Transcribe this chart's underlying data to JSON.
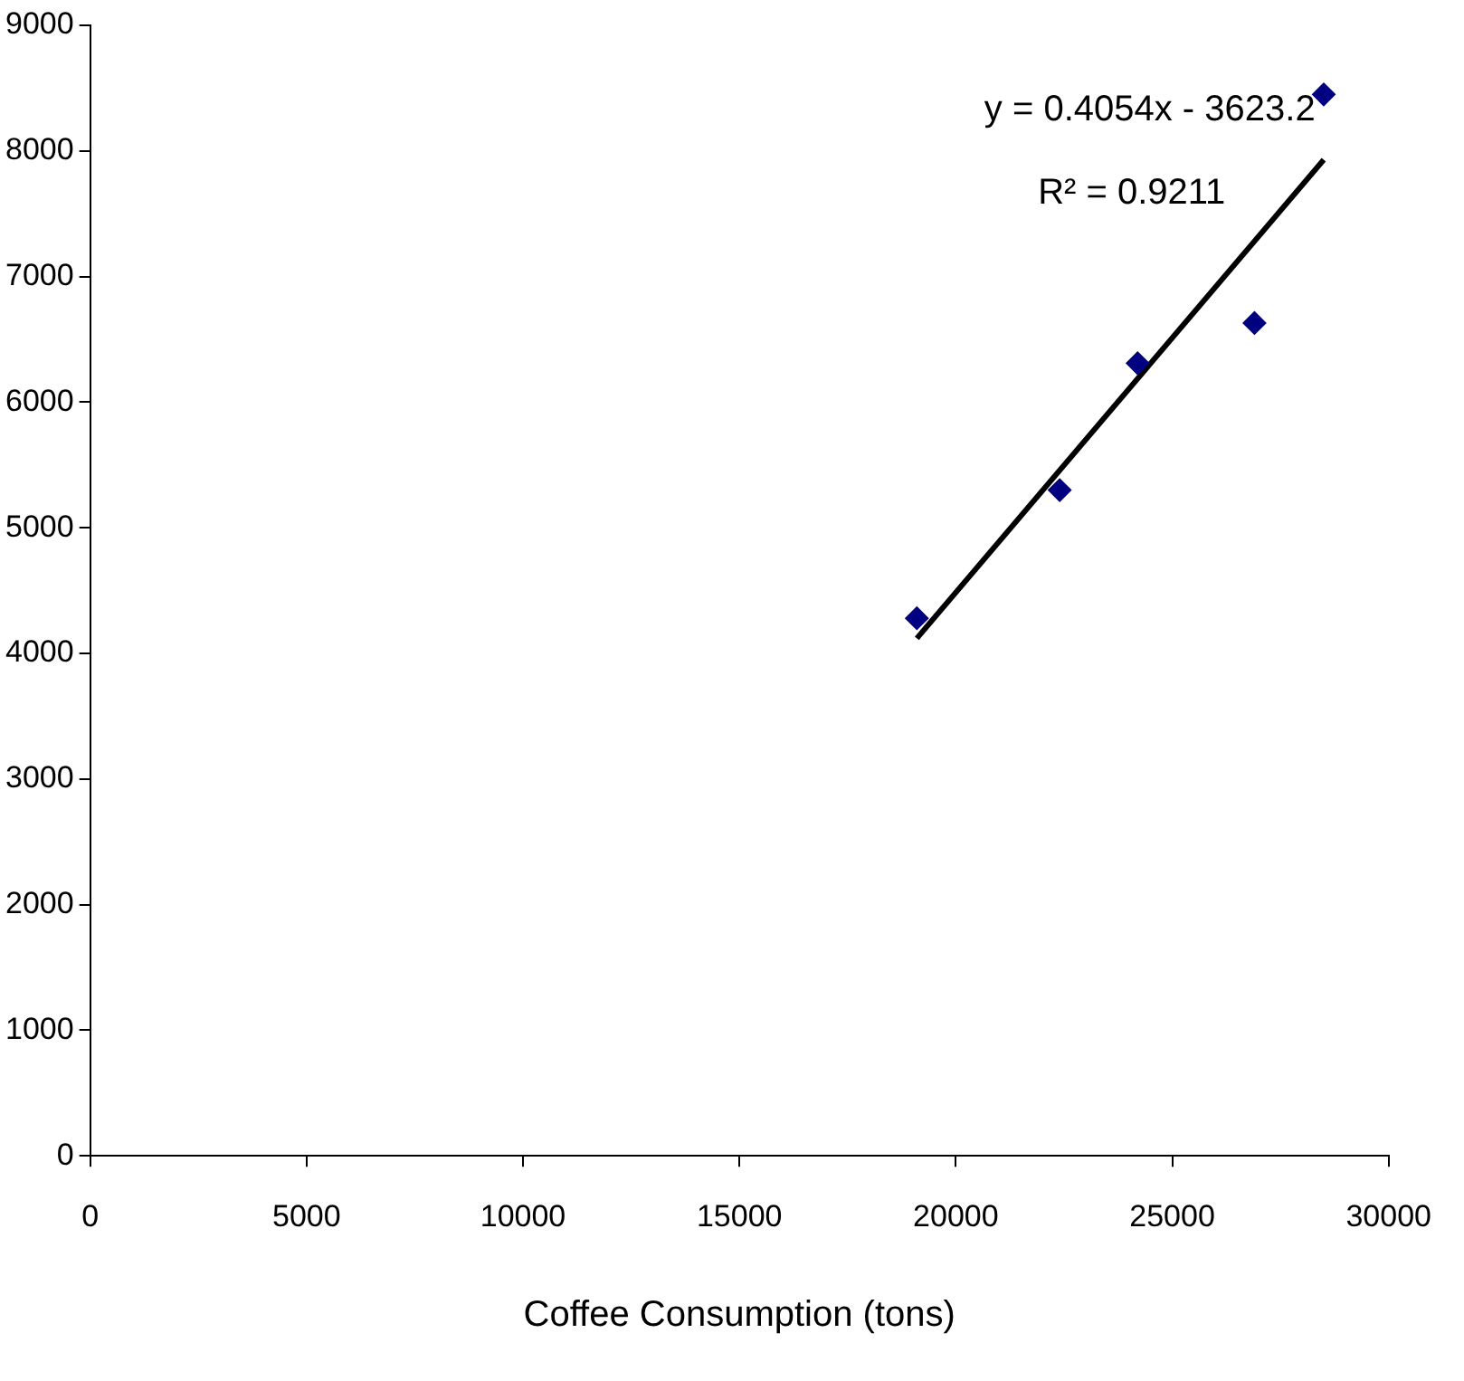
{
  "chart_data": {
    "type": "scatter",
    "xlabel": "Coffee Consumption (tons)",
    "series": [
      {
        "color": "#000080",
        "marker": "diamond",
        "x": [
          19100,
          22400,
          24200,
          26900,
          28500
        ],
        "values": [
          4280,
          5300,
          6310,
          6630,
          8450
        ]
      },
      {
        "type": "line",
        "color": "#000000",
        "marker": "none",
        "x": [
          19100,
          28500
        ],
        "values": [
          4120,
          7930
        ]
      }
    ],
    "annotations": [
      "y = 0.4054x - 3623.2",
      "R² = 0.9211"
    ],
    "xlim": [
      0,
      30000
    ],
    "xticks": [
      0,
      5000,
      10000,
      15000,
      20000,
      25000,
      30000
    ],
    "ylim": [
      0,
      9000
    ],
    "yticks": [
      0,
      1000,
      2000,
      3000,
      4000,
      5000,
      6000,
      7000,
      8000,
      9000
    ],
    "grid": false,
    "legend": false
  }
}
